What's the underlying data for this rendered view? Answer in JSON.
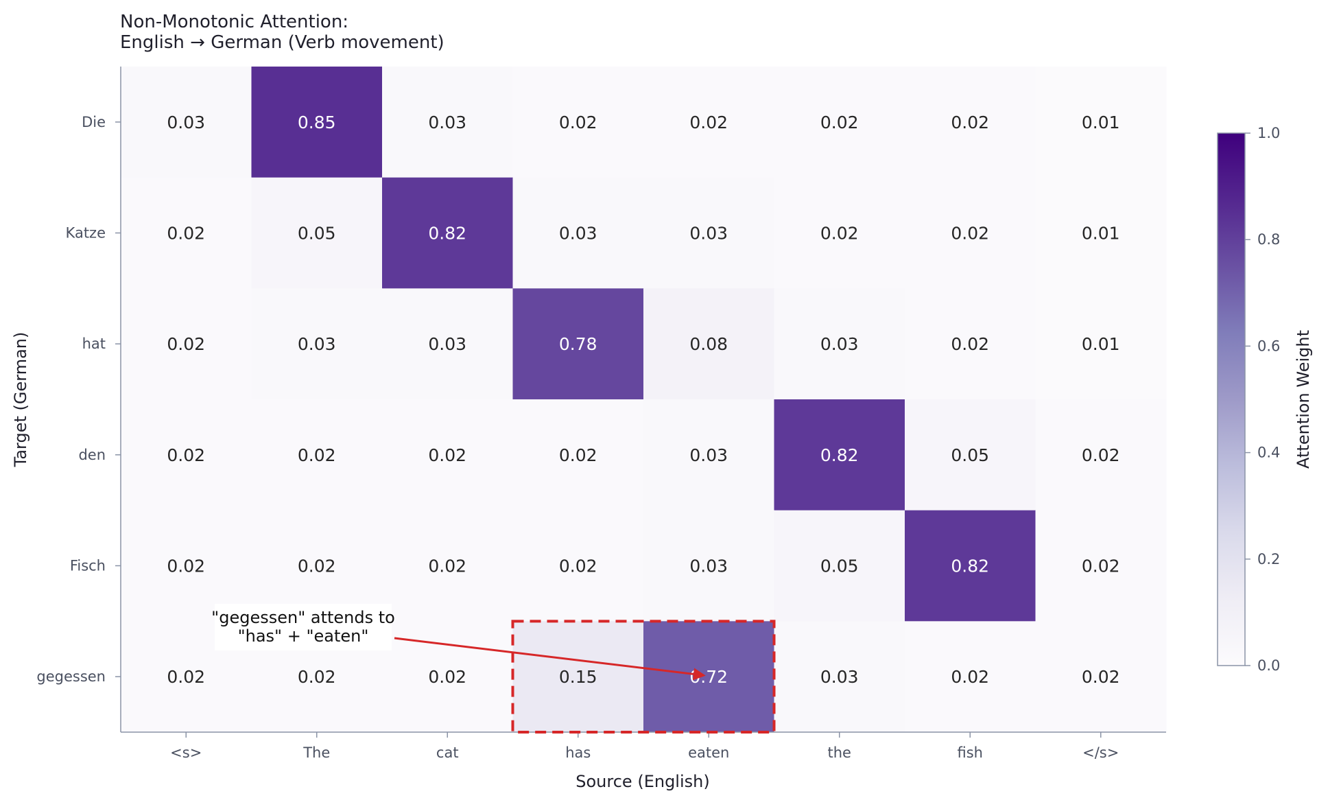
{
  "chart_data": {
    "type": "heatmap",
    "title_lines": [
      "Non-Monotonic Attention:",
      "English → German (Verb movement)"
    ],
    "xlabel": "Source (English)",
    "ylabel": "Target (German)",
    "x_categories": [
      "<s>",
      "The",
      "cat",
      "has",
      "eaten",
      "the",
      "fish",
      "</s>"
    ],
    "y_categories": [
      "Die",
      "Katze",
      "hat",
      "den",
      "Fisch",
      "gegessen"
    ],
    "values": [
      [
        0.03,
        0.85,
        0.03,
        0.02,
        0.02,
        0.02,
        0.02,
        0.01
      ],
      [
        0.02,
        0.05,
        0.82,
        0.03,
        0.03,
        0.02,
        0.02,
        0.01
      ],
      [
        0.02,
        0.03,
        0.03,
        0.78,
        0.08,
        0.03,
        0.02,
        0.01
      ],
      [
        0.02,
        0.02,
        0.02,
        0.02,
        0.03,
        0.82,
        0.05,
        0.02
      ],
      [
        0.02,
        0.02,
        0.02,
        0.02,
        0.03,
        0.05,
        0.82,
        0.02
      ],
      [
        0.02,
        0.02,
        0.02,
        0.15,
        0.72,
        0.03,
        0.02,
        0.02
      ]
    ],
    "value_labels": [
      [
        "0.03",
        "0.85",
        "0.03",
        "0.02",
        "0.02",
        "0.02",
        "0.02",
        "0.01"
      ],
      [
        "0.02",
        "0.05",
        "0.82",
        "0.03",
        "0.03",
        "0.02",
        "0.02",
        "0.01"
      ],
      [
        "0.02",
        "0.03",
        "0.03",
        "0.78",
        "0.08",
        "0.03",
        "0.02",
        "0.01"
      ],
      [
        "0.02",
        "0.02",
        "0.02",
        "0.02",
        "0.03",
        "0.82",
        "0.05",
        "0.02"
      ],
      [
        "0.02",
        "0.02",
        "0.02",
        "0.02",
        "0.03",
        "0.05",
        "0.82",
        "0.02"
      ],
      [
        "0.02",
        "0.02",
        "0.02",
        "0.15",
        "0.72",
        "0.03",
        "0.02",
        "0.02"
      ]
    ],
    "colormap": "Purples",
    "colorbar": {
      "label": "Attention Weight",
      "range": [
        0.0,
        1.0
      ],
      "ticks": [
        0.0,
        0.2,
        0.4,
        0.6,
        0.8,
        1.0
      ],
      "tick_labels": [
        "0.0",
        "0.2",
        "0.4",
        "0.6",
        "0.8",
        "1.0"
      ]
    },
    "highlight": {
      "row": 5,
      "col_start": 3,
      "col_end": 4,
      "color": "#d62728",
      "style": "dashed"
    },
    "annotation": {
      "text_lines": [
        "\"gegessen\" attends to",
        "\"has\" + \"eaten\""
      ],
      "target_row": 5,
      "target_col": 4,
      "arrow_color": "#d62728"
    },
    "grid": false
  }
}
